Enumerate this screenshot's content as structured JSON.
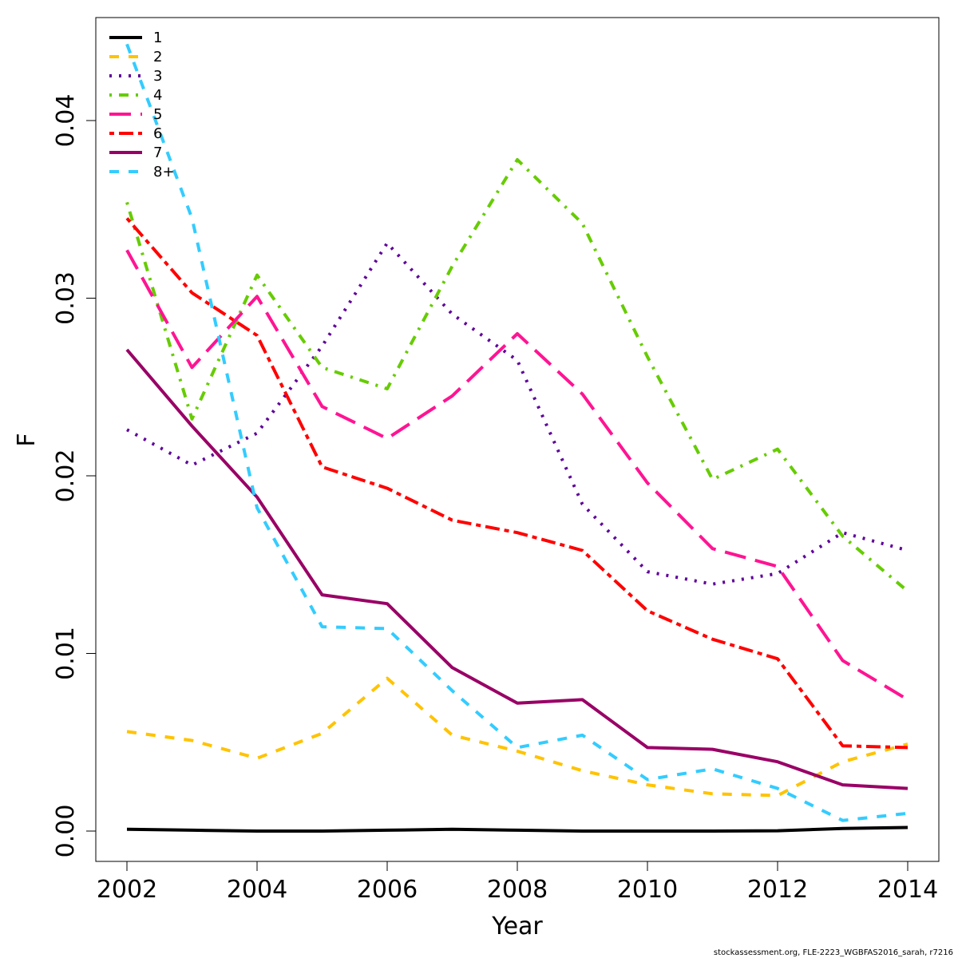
{
  "chart_data": {
    "type": "line",
    "title": "",
    "xlabel": "Year",
    "ylabel": "F",
    "xlim": [
      2002,
      2014
    ],
    "ylim": [
      0.0,
      0.045
    ],
    "x_ticks": [
      2002,
      2004,
      2006,
      2008,
      2010,
      2012,
      2014
    ],
    "y_ticks": [
      0.0,
      0.01,
      0.02,
      0.03,
      0.04
    ],
    "y_tick_labels": [
      "0.00",
      "0.01",
      "0.02",
      "0.03",
      "0.04"
    ],
    "grid": false,
    "legend_position": "top-left",
    "x": [
      2002,
      2003,
      2004,
      2005,
      2006,
      2007,
      2008,
      2009,
      2010,
      2011,
      2012,
      2013,
      2014
    ],
    "series": [
      {
        "name": "1",
        "color": "#000000",
        "dash": "solid",
        "values": [
          0.0001,
          5e-05,
          0.0,
          0.0,
          5e-05,
          0.0001,
          5e-05,
          0.0,
          0.0,
          0.0,
          2e-05,
          0.00015,
          0.0002
        ]
      },
      {
        "name": "2",
        "color": "#FFC300",
        "dash": "dashed",
        "values": [
          0.0056,
          0.0051,
          0.0041,
          0.0055,
          0.0086,
          0.0054,
          0.0045,
          0.0034,
          0.0026,
          0.0021,
          0.002,
          0.0039,
          0.0049
        ]
      },
      {
        "name": "3",
        "color": "#5E0099",
        "dash": "dotted",
        "values": [
          0.0226,
          0.0206,
          0.0224,
          0.0273,
          0.0331,
          0.0291,
          0.0265,
          0.0184,
          0.0146,
          0.0139,
          0.0145,
          0.0168,
          0.0158
        ]
      },
      {
        "name": "4",
        "color": "#66CC00",
        "dash": "dotdash",
        "values": [
          0.0354,
          0.0232,
          0.0313,
          0.0261,
          0.0249,
          0.0318,
          0.0378,
          0.0342,
          0.0267,
          0.0198,
          0.0215,
          0.0166,
          0.0135
        ]
      },
      {
        "name": "5",
        "color": "#FF1493",
        "dash": "longdash",
        "values": [
          0.0327,
          0.0261,
          0.0301,
          0.0239,
          0.0221,
          0.0245,
          0.028,
          0.0246,
          0.0196,
          0.0159,
          0.0149,
          0.0096,
          0.0074
        ]
      },
      {
        "name": "6",
        "color": "#FF0000",
        "dash": "twodash",
        "values": [
          0.0345,
          0.0303,
          0.0279,
          0.0205,
          0.0193,
          0.0175,
          0.0168,
          0.0158,
          0.0124,
          0.0108,
          0.0097,
          0.0048,
          0.0047
        ]
      },
      {
        "name": "7",
        "color": "#990066",
        "dash": "solid",
        "values": [
          0.0271,
          0.0228,
          0.0188,
          0.0133,
          0.0128,
          0.0092,
          0.0072,
          0.0074,
          0.0047,
          0.0046,
          0.0039,
          0.0026,
          0.0024
        ]
      },
      {
        "name": "8+",
        "color": "#33CCFF",
        "dash": "dashed",
        "values": [
          0.0443,
          0.0345,
          0.0182,
          0.0115,
          0.0114,
          0.0079,
          0.0047,
          0.0054,
          0.0029,
          0.0035,
          0.0024,
          0.0006,
          0.001
        ]
      }
    ]
  },
  "footer": {
    "text": "stockassessment.org, FLE-2223_WGBFAS2016_sarah, r7216"
  }
}
